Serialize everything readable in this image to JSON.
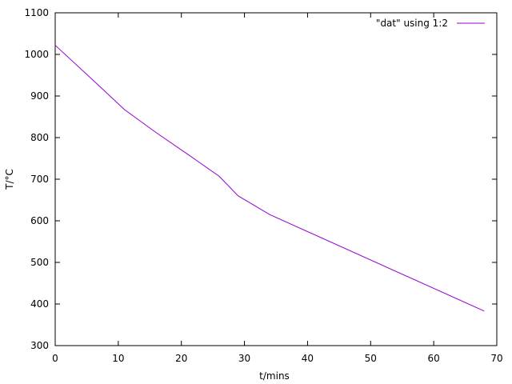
{
  "chart_data": {
    "type": "line",
    "title": "",
    "xlabel": "t/mins",
    "ylabel": "T/°C",
    "xlim": [
      0,
      70
    ],
    "ylim": [
      300,
      1100
    ],
    "xticks": [
      0,
      10,
      20,
      30,
      40,
      50,
      60,
      70
    ],
    "yticks": [
      300,
      400,
      500,
      600,
      700,
      800,
      900,
      1000,
      1100
    ],
    "grid": false,
    "legend_position": "top-right",
    "series": [
      {
        "name": "\"dat\" using 1:2",
        "color": "#9400d3",
        "x": [
          0,
          6,
          11,
          16,
          21,
          26,
          29,
          34,
          68
        ],
        "y": [
          1022,
          938,
          867,
          812,
          760,
          707,
          660,
          615,
          383
        ]
      }
    ]
  }
}
